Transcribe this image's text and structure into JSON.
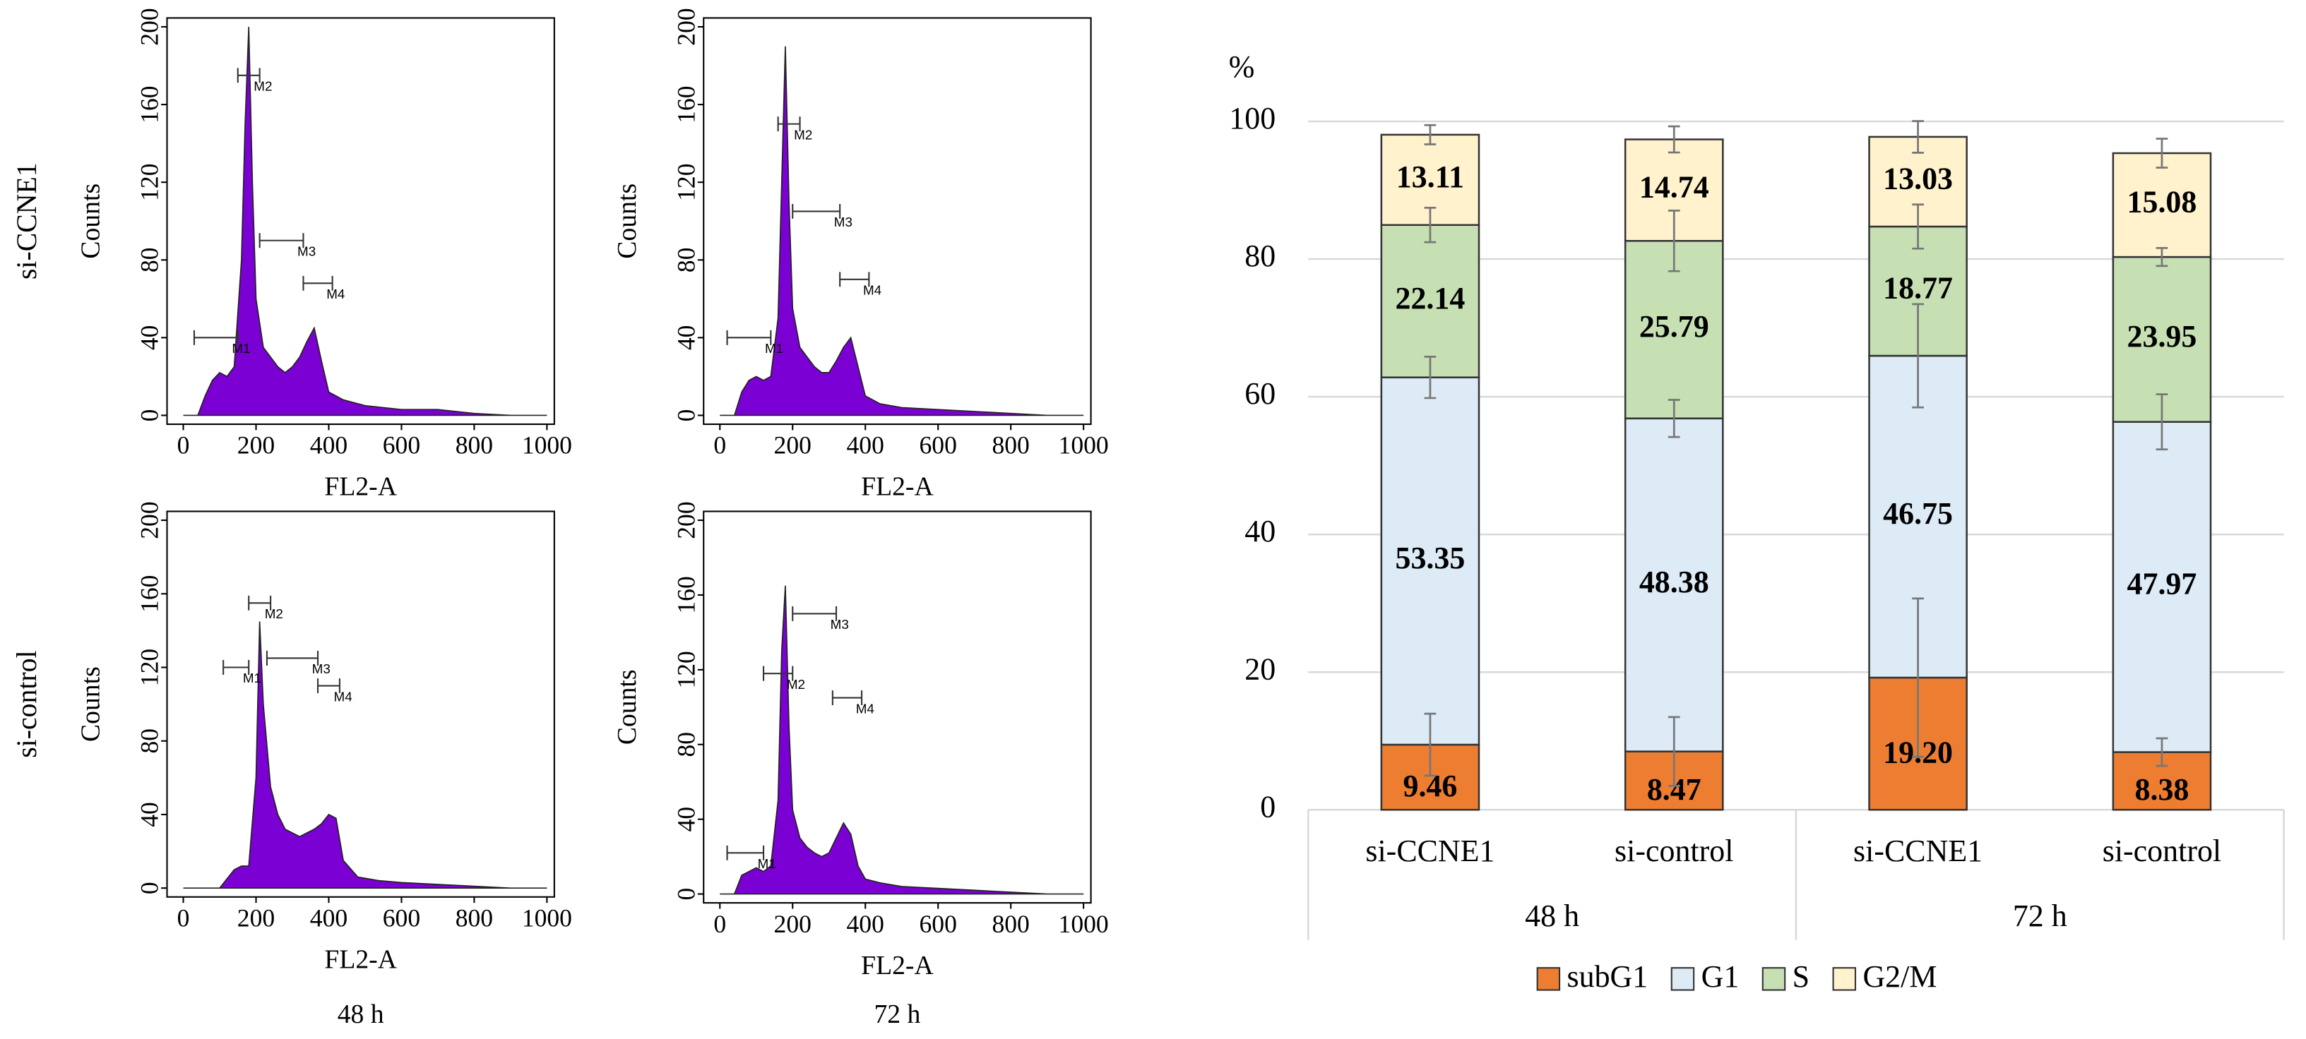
{
  "panel_labels": {
    "rows": [
      "si-CCNE1",
      "si-control"
    ],
    "columns": [
      "48 h",
      "72 h"
    ]
  },
  "chart_data": [
    {
      "type": "area",
      "xlabel": "FL2-A",
      "ylabel": "Counts",
      "color": "#7b00d4",
      "x": [
        0,
        40,
        60,
        80,
        100,
        120,
        140,
        160,
        170,
        180,
        190,
        200,
        220,
        240,
        260,
        280,
        300,
        320,
        340,
        360,
        380,
        400,
        440,
        500,
        600,
        700,
        800,
        900,
        1000
      ],
      "values": [
        0,
        0,
        10,
        18,
        22,
        20,
        25,
        80,
        150,
        200,
        120,
        60,
        35,
        30,
        25,
        22,
        25,
        30,
        38,
        45,
        28,
        12,
        8,
        5,
        3,
        3,
        1,
        0,
        0
      ],
      "xlim": [
        0,
        1000
      ],
      "xticks": [
        0,
        200,
        400,
        600,
        800,
        1000
      ],
      "ylim": [
        0,
        200
      ],
      "yticks": [
        0,
        40,
        80,
        120,
        160,
        200
      ],
      "gates": [
        {
          "label": "M1",
          "x": [
            30,
            150
          ],
          "y": 40
        },
        {
          "label": "M2",
          "x": [
            150,
            210
          ],
          "y": 175
        },
        {
          "label": "M3",
          "x": [
            210,
            330
          ],
          "y": 90
        },
        {
          "label": "M4",
          "x": [
            330,
            410
          ],
          "y": 68
        }
      ]
    },
    {
      "type": "area",
      "xlabel": "FL2-A",
      "ylabel": "Counts",
      "color": "#7b00d4",
      "x": [
        0,
        40,
        60,
        80,
        100,
        120,
        140,
        160,
        170,
        180,
        190,
        200,
        220,
        240,
        260,
        280,
        300,
        320,
        340,
        360,
        380,
        400,
        440,
        500,
        600,
        700,
        800,
        900,
        1000
      ],
      "values": [
        0,
        0,
        12,
        18,
        20,
        18,
        20,
        50,
        120,
        190,
        110,
        55,
        35,
        30,
        25,
        22,
        22,
        28,
        35,
        40,
        25,
        10,
        6,
        4,
        3,
        2,
        1,
        0,
        0
      ],
      "xlim": [
        0,
        1000
      ],
      "xticks": [
        0,
        200,
        400,
        600,
        800,
        1000
      ],
      "ylim": [
        0,
        200
      ],
      "yticks": [
        0,
        40,
        80,
        120,
        160,
        200
      ],
      "gates": [
        {
          "label": "M1",
          "x": [
            20,
            140
          ],
          "y": 40
        },
        {
          "label": "M2",
          "x": [
            160,
            220
          ],
          "y": 150
        },
        {
          "label": "M3",
          "x": [
            200,
            330
          ],
          "y": 105
        },
        {
          "label": "M4",
          "x": [
            330,
            410
          ],
          "y": 70
        }
      ]
    },
    {
      "type": "area",
      "xlabel": "FL2-A",
      "ylabel": "Counts",
      "color": "#7b00d4",
      "x": [
        0,
        100,
        120,
        140,
        160,
        180,
        200,
        210,
        220,
        240,
        260,
        280,
        300,
        320,
        340,
        360,
        380,
        400,
        420,
        440,
        480,
        540,
        600,
        700,
        800,
        900,
        1000
      ],
      "values": [
        0,
        0,
        5,
        10,
        12,
        12,
        60,
        145,
        100,
        55,
        40,
        32,
        30,
        28,
        30,
        32,
        35,
        40,
        38,
        15,
        6,
        4,
        3,
        2,
        1,
        0,
        0
      ],
      "xlim": [
        0,
        1000
      ],
      "xticks": [
        0,
        200,
        400,
        600,
        800,
        1000
      ],
      "ylim": [
        0,
        200
      ],
      "yticks": [
        0,
        40,
        80,
        120,
        160,
        200
      ],
      "gates": [
        {
          "label": "M1",
          "x": [
            110,
            180
          ],
          "y": 120
        },
        {
          "label": "M2",
          "x": [
            180,
            240
          ],
          "y": 155
        },
        {
          "label": "M3",
          "x": [
            230,
            370
          ],
          "y": 125
        },
        {
          "label": "M4",
          "x": [
            370,
            430
          ],
          "y": 110
        }
      ]
    },
    {
      "type": "area",
      "xlabel": "FL2-A",
      "ylabel": "Counts",
      "color": "#7b00d4",
      "x": [
        0,
        40,
        60,
        80,
        100,
        120,
        140,
        160,
        170,
        180,
        190,
        200,
        220,
        240,
        260,
        280,
        300,
        320,
        340,
        360,
        380,
        400,
        440,
        500,
        600,
        700,
        800,
        900,
        1000
      ],
      "values": [
        0,
        0,
        10,
        12,
        14,
        12,
        15,
        50,
        130,
        165,
        90,
        45,
        30,
        25,
        22,
        20,
        22,
        30,
        38,
        32,
        15,
        8,
        6,
        4,
        3,
        2,
        1,
        0,
        0
      ],
      "xlim": [
        0,
        1000
      ],
      "xticks": [
        0,
        200,
        400,
        600,
        800,
        1000
      ],
      "ylim": [
        0,
        200
      ],
      "yticks": [
        0,
        40,
        80,
        120,
        160,
        200
      ],
      "gates": [
        {
          "label": "M1",
          "x": [
            20,
            120
          ],
          "y": 22
        },
        {
          "label": "M2",
          "x": [
            120,
            200
          ],
          "y": 118
        },
        {
          "label": "M3",
          "x": [
            200,
            320
          ],
          "y": 150
        },
        {
          "label": "M4",
          "x": [
            310,
            390
          ],
          "y": 105
        }
      ]
    },
    {
      "type": "stacked_bar",
      "ylabel": "%",
      "groups": [
        {
          "name": "48 h",
          "categories": [
            "si-CCNE1",
            "si-control"
          ]
        },
        {
          "name": "72 h",
          "categories": [
            "si-CCNE1",
            "si-control"
          ]
        }
      ],
      "series": [
        {
          "name": "subG1",
          "color": "#ed7d31",
          "values": [
            9.46,
            8.47,
            19.2,
            8.38
          ],
          "value_labels": [
            "9.46",
            "8.47",
            "19.20",
            "8.38"
          ],
          "errors": [
            4.5,
            5,
            11.5,
            2
          ]
        },
        {
          "name": "G1",
          "color": "#ddebf7",
          "values": [
            53.35,
            48.38,
            46.75,
            47.97
          ],
          "errors": [
            3,
            2.7,
            7.5,
            4
          ]
        },
        {
          "name": "S",
          "color": "#c6e0b4",
          "values": [
            22.14,
            25.79,
            18.77,
            23.95
          ],
          "errors": [
            2.5,
            4.4,
            3.2,
            1.3
          ]
        },
        {
          "name": "G2/M",
          "color": "#fff2cc",
          "values": [
            13.11,
            14.74,
            13.03,
            15.08
          ],
          "errors": [
            1.4,
            1.9,
            2.3,
            2.1
          ]
        }
      ],
      "ylim": [
        0,
        100
      ],
      "yticks": [
        0,
        20,
        40,
        60,
        80,
        100
      ],
      "grid": true,
      "legend": "bottom"
    }
  ]
}
